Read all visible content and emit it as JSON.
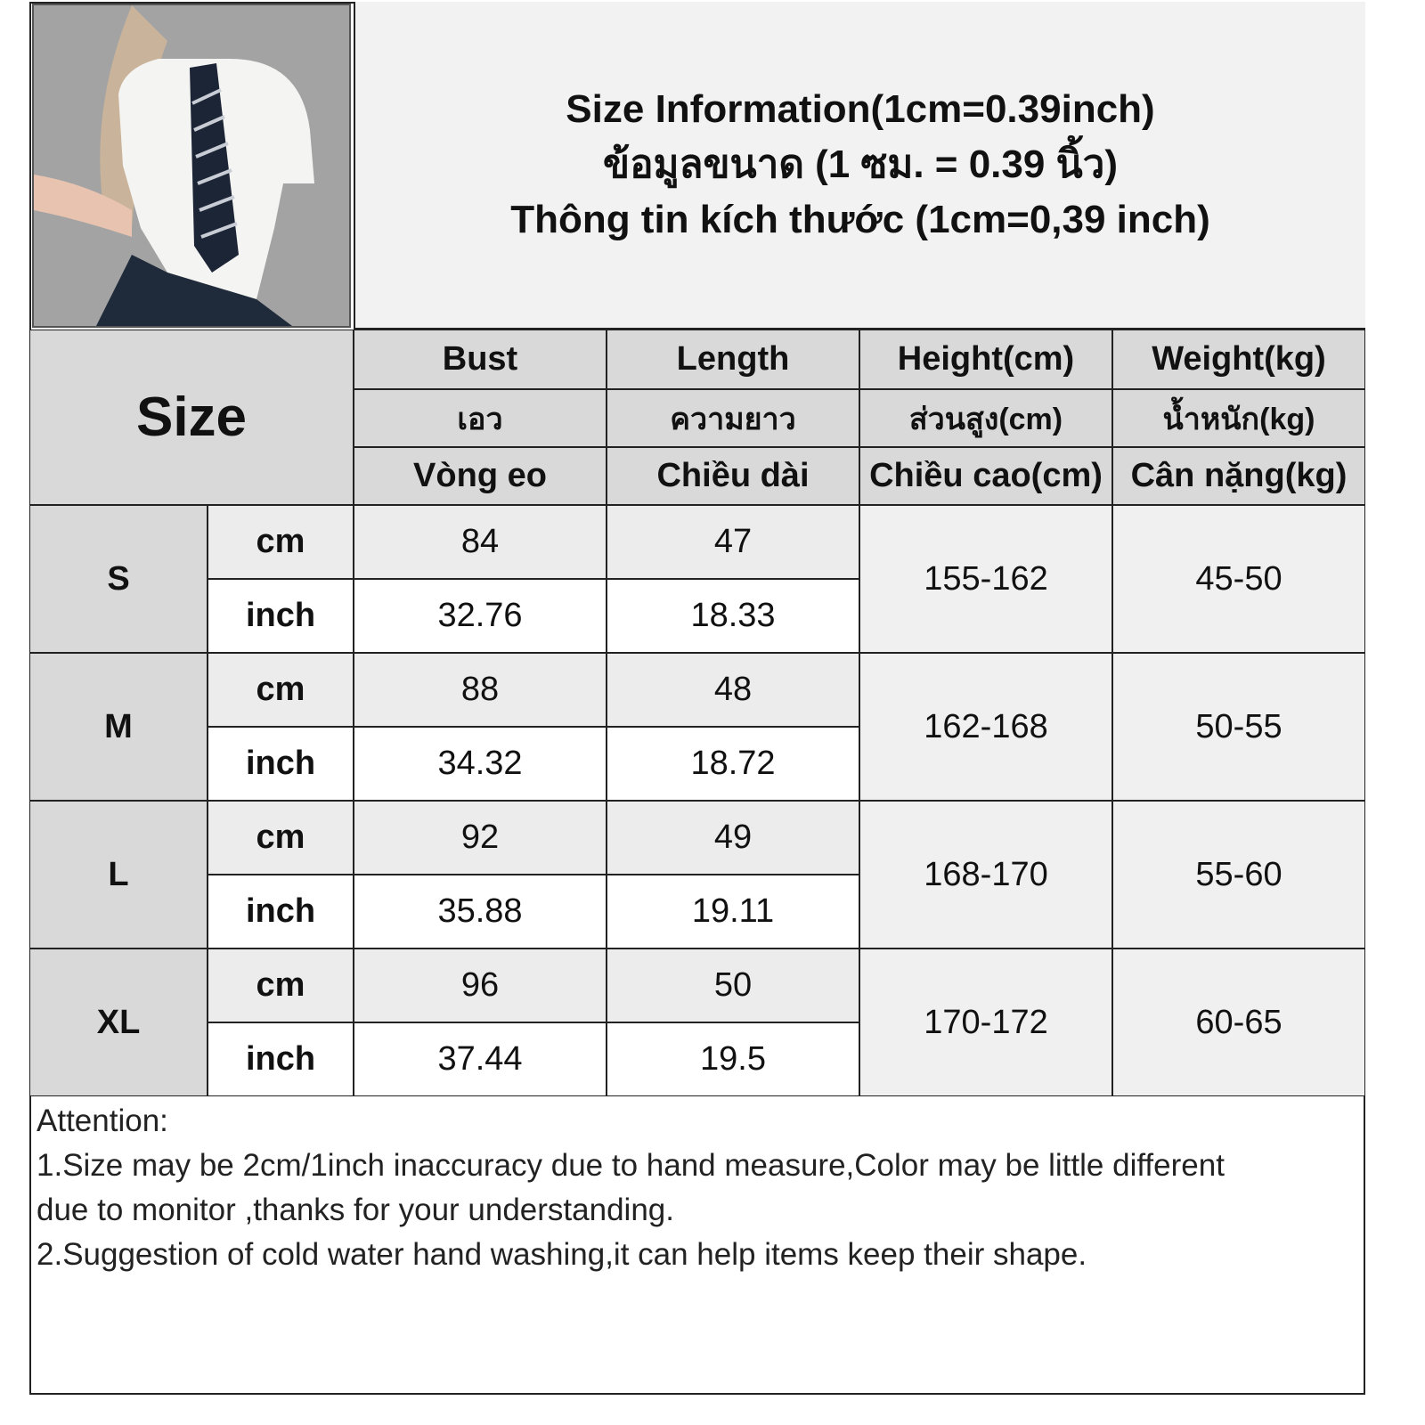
{
  "title": {
    "line1": "Size Information(1cm=0.39inch)",
    "line2": "ข้อมูลขนาด (1 ซม. = 0.39 นิ้ว)",
    "line3": "Thông tin kích thước (1cm=0,39 inch)"
  },
  "table": {
    "size_header": "Size",
    "columns": [
      {
        "en": "Bust",
        "th": "เอว",
        "vi": "Vòng eo"
      },
      {
        "en": "Length",
        "th": "ความยาว",
        "vi": "Chiều dài"
      },
      {
        "en": "Height(cm)",
        "th": "ส่วนสูง(cm)",
        "vi": "Chiều cao(cm)"
      },
      {
        "en": "Weight(kg)",
        "th": "น้ำหนัก(kg)",
        "vi": "Cân nặng(kg)"
      }
    ],
    "unit_cm": "cm",
    "unit_inch": "inch",
    "rows": [
      {
        "size": "S",
        "bust_cm": "84",
        "length_cm": "47",
        "bust_inch": "32.76",
        "length_inch": "18.33",
        "height": "155-162",
        "weight": "45-50"
      },
      {
        "size": "M",
        "bust_cm": "88",
        "length_cm": "48",
        "bust_inch": "34.32",
        "length_inch": "18.72",
        "height": "162-168",
        "weight": "50-55"
      },
      {
        "size": "L",
        "bust_cm": "92",
        "length_cm": "49",
        "bust_inch": "35.88",
        "length_inch": "19.11",
        "height": "168-170",
        "weight": "55-60"
      },
      {
        "size": "XL",
        "bust_cm": "96",
        "length_cm": "50",
        "bust_inch": "37.44",
        "length_inch": "19.5",
        "height": "170-172",
        "weight": "60-65"
      }
    ]
  },
  "notes": [
    "Attention:",
    "1.Size may be 2cm/1inch inaccuracy due to hand measure,Color may be little different",
    "due to monitor ,thanks for your understanding.",
    "2.Suggestion of cold water hand washing,it can help items keep their shape."
  ]
}
